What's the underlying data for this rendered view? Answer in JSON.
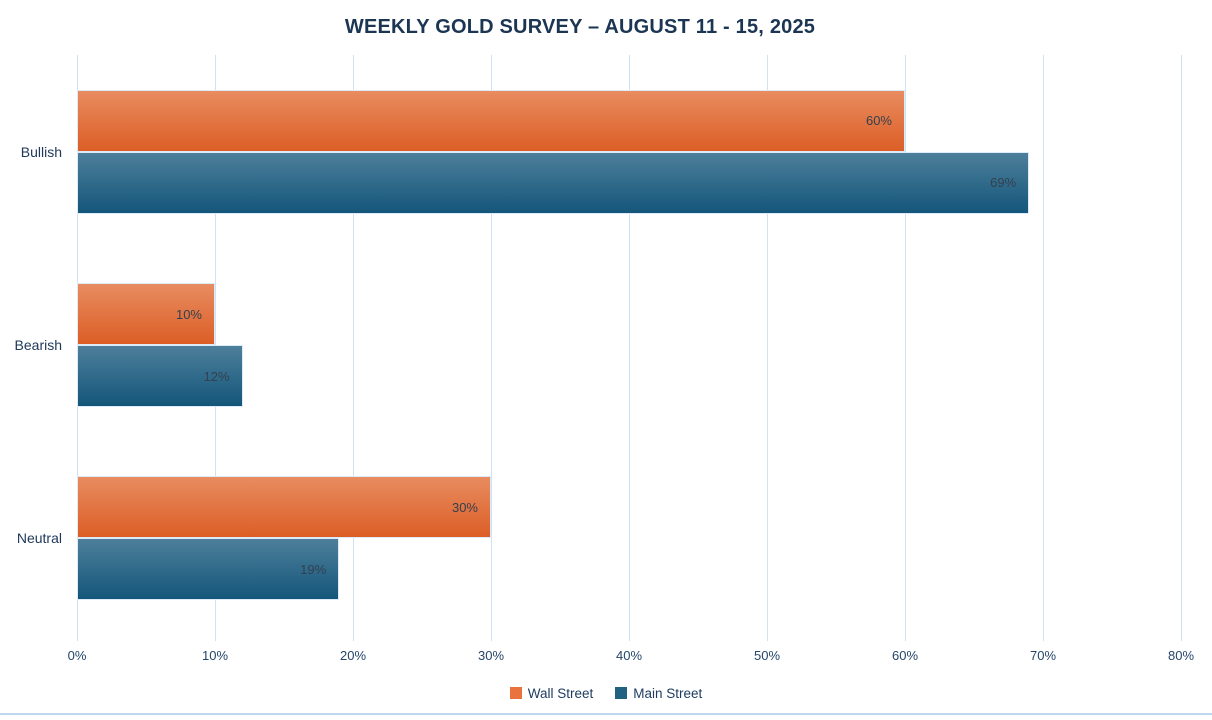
{
  "chart_data": {
    "type": "bar",
    "orientation": "horizontal",
    "title": "WEEKLY GOLD SURVEY – AUGUST 11  - 15, 2025",
    "categories": [
      "Bullish",
      "Bearish",
      "Neutral"
    ],
    "series": [
      {
        "name": "Wall Street",
        "values": [
          60,
          10,
          30
        ],
        "color_top": "#E88C60",
        "color_bottom": "#DC5E26",
        "legend_color": "#E9723D"
      },
      {
        "name": "Main Street",
        "values": [
          69,
          12,
          19
        ],
        "color_top": "#4D7F9B",
        "color_bottom": "#14567A",
        "legend_color": "#20627F"
      }
    ],
    "value_suffix": "%",
    "xlim": [
      0,
      80
    ],
    "x_ticks": [
      "0%",
      "10%",
      "20%",
      "30%",
      "40%",
      "50%",
      "60%",
      "70%",
      "80%"
    ],
    "grid": true,
    "legend_position": "bottom",
    "colors": {
      "title_text": "#1B3552",
      "axis_text": "#24466B",
      "category_text": "#20395A",
      "data_label_text": "#33404F",
      "gridline": "#CFE2F4",
      "bottom_rule": "#BDD7EE",
      "background": "#FFFFFF"
    }
  }
}
